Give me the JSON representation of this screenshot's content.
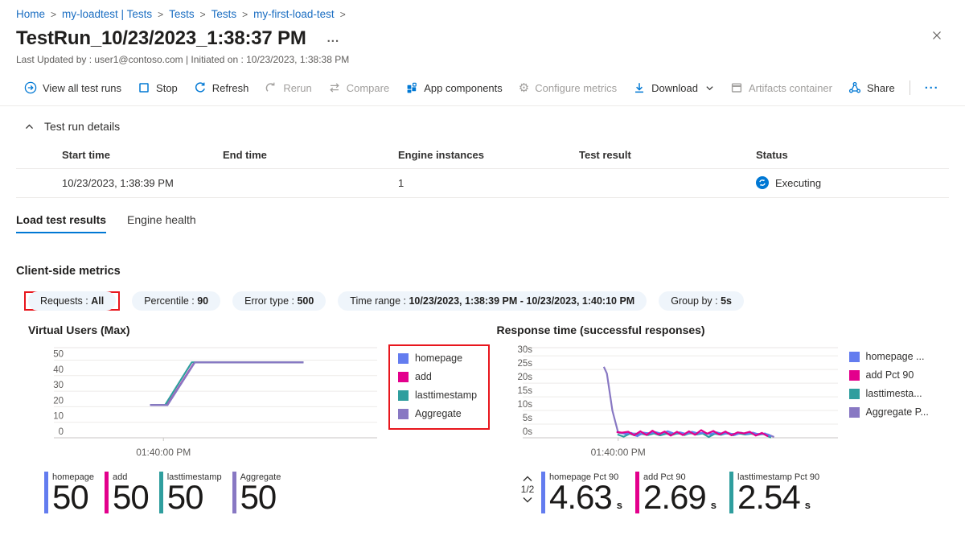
{
  "breadcrumb": {
    "separator": ">",
    "items": [
      "Home",
      "my-loadtest | Tests",
      "Tests",
      "Tests",
      "my-first-load-test"
    ]
  },
  "header": {
    "title": "TestRun_10/23/2023_1:38:37 PM",
    "more_label": "...",
    "subtitle": "Last Updated by : user1@contoso.com | Initiated on : 10/23/2023, 1:38:38 PM"
  },
  "toolbar": {
    "items": [
      {
        "id": "view-all-test-runs",
        "label": "View all test runs",
        "icon": "goto",
        "enabled": true
      },
      {
        "id": "stop",
        "label": "Stop",
        "icon": "stop",
        "enabled": true
      },
      {
        "id": "refresh",
        "label": "Refresh",
        "icon": "refresh",
        "enabled": true
      },
      {
        "id": "rerun",
        "label": "Rerun",
        "icon": "rerun",
        "enabled": false
      },
      {
        "id": "compare",
        "label": "Compare",
        "icon": "compare",
        "enabled": false
      },
      {
        "id": "app-components",
        "label": "App components",
        "icon": "appcomponents",
        "enabled": true
      },
      {
        "id": "configure-metrics",
        "label": "Configure metrics",
        "icon": "gear",
        "enabled": false
      },
      {
        "id": "download",
        "label": "Download",
        "icon": "download",
        "enabled": true,
        "dropdown": true
      },
      {
        "id": "artifacts-container",
        "label": "Artifacts container",
        "icon": "container",
        "enabled": false
      },
      {
        "id": "share",
        "label": "Share",
        "icon": "share",
        "enabled": true
      },
      {
        "id": "more-commands",
        "label": "···",
        "icon": "ellipsis",
        "enabled": true,
        "divider_before": true
      }
    ]
  },
  "details": {
    "section_title": "Test run details",
    "table": {
      "headers": [
        "Start time",
        "End time",
        "Engine instances",
        "Test result",
        "Status"
      ],
      "row": [
        "10/23/2023, 1:38:39 PM",
        "",
        "1",
        ""
      ],
      "status_label": "Executing",
      "status_color": "#0078d4"
    }
  },
  "tabs": [
    {
      "label": "Load test results",
      "active": true
    },
    {
      "label": "Engine health",
      "active": false
    }
  ],
  "metrics": {
    "heading": "Client-side metrics",
    "filters": [
      {
        "label": "Requests",
        "value": "All",
        "highlighted": true
      },
      {
        "label": "Percentile",
        "value": "90",
        "highlighted": false
      },
      {
        "label": "Error type",
        "value": "500",
        "highlighted": false
      },
      {
        "label": "Time range",
        "value": "10/23/2023, 1:38:39 PM - 10/23/2023, 1:40:10 PM",
        "highlighted": false
      },
      {
        "label": "Group by",
        "value": "5s",
        "highlighted": false
      }
    ]
  },
  "colors": {
    "accent": "#0078d4",
    "annotation_red": "#e8161d",
    "homepage": "#637cef",
    "add": "#e3008c",
    "lasttimestamp": "#2f9e9e",
    "aggregate": "#8878c3"
  },
  "chart_data": [
    {
      "type": "line",
      "title": "Virtual Users (Max)",
      "ylim": [
        0,
        58
      ],
      "grid": true,
      "legend_position": "right",
      "legend_boxed": true,
      "y_ticks": [
        {
          "v": 0,
          "label": "0"
        },
        {
          "v": 10,
          "label": "10"
        },
        {
          "v": 20,
          "label": "20"
        },
        {
          "v": 30,
          "label": "30"
        },
        {
          "v": 40,
          "label": "40"
        },
        {
          "v": 50,
          "label": "50"
        }
      ],
      "x_ticks": [
        {
          "f": 0.315,
          "label": "01:40:00 PM"
        }
      ],
      "legend": [
        {
          "label": "homepage",
          "color": "#637cef"
        },
        {
          "label": "add",
          "color": "#e3008c"
        },
        {
          "label": "lasttimestamp",
          "color": "#2f9e9e"
        },
        {
          "label": "Aggregate",
          "color": "#8878c3"
        }
      ],
      "series": [
        {
          "name": "homepage",
          "color": "#637cef",
          "points": [
            [
              0.272,
              21
            ],
            [
              0.327,
              21
            ],
            [
              0.415,
              48.6
            ],
            [
              0.764,
              48.6
            ]
          ]
        },
        {
          "name": "add",
          "color": "#e3008c",
          "points": [
            [
              0.272,
              21
            ],
            [
              0.327,
              21
            ],
            [
              0.415,
              48.6
            ],
            [
              0.764,
              48.6
            ]
          ]
        },
        {
          "name": "lasttimestamp",
          "color": "#2f9e9e",
          "points": [
            [
              0.272,
              21
            ],
            [
              0.32,
              21
            ],
            [
              0.406,
              48.6
            ],
            [
              0.764,
              48.6
            ]
          ]
        },
        {
          "name": "Aggregate",
          "color": "#8878c3",
          "points": [
            [
              0.272,
              21
            ],
            [
              0.328,
              21
            ],
            [
              0.416,
              48.6
            ],
            [
              0.764,
              48.6
            ]
          ]
        }
      ]
    },
    {
      "type": "line",
      "title": "Response time (successful responses)",
      "ylim": [
        0,
        33
      ],
      "grid": true,
      "legend_position": "right",
      "legend_boxed": false,
      "y_ticks": [
        {
          "v": 0,
          "label": "0s"
        },
        {
          "v": 5,
          "label": "5s"
        },
        {
          "v": 10,
          "label": "10s"
        },
        {
          "v": 15,
          "label": "15s"
        },
        {
          "v": 20,
          "label": "20s"
        },
        {
          "v": 25,
          "label": "25s"
        },
        {
          "v": 30,
          "label": "30s"
        }
      ],
      "x_ticks": [
        {
          "f": 0.277,
          "label": "01:40:00 PM"
        }
      ],
      "legend": [
        {
          "label": "homepage ...",
          "color": "#637cef"
        },
        {
          "label": "add Pct 90",
          "color": "#e3008c"
        },
        {
          "label": "lasttimesta...",
          "color": "#2f9e9e"
        },
        {
          "label": "Aggregate P...",
          "color": "#8878c3"
        }
      ],
      "series": [
        {
          "name": "Aggregate Pct 90",
          "color": "#8878c3",
          "points": [
            [
              0.23,
              26
            ],
            [
              0.24,
              23.5
            ],
            [
              0.258,
              10
            ],
            [
              0.277,
              1.9
            ],
            [
              0.3,
              1.6
            ],
            [
              0.34,
              1.5
            ],
            [
              0.38,
              1.7
            ],
            [
              0.42,
              1.5
            ],
            [
              0.46,
              1.6
            ],
            [
              0.5,
              1.5
            ],
            [
              0.54,
              1.7
            ],
            [
              0.58,
              1.4
            ],
            [
              0.62,
              1.6
            ],
            [
              0.66,
              1.4
            ],
            [
              0.7,
              1.6
            ],
            [
              0.74,
              1.4
            ],
            [
              0.77,
              1.2
            ],
            [
              0.79,
              0.3
            ]
          ]
        },
        {
          "name": "lasttimestamp Pct 90",
          "color": "#2f9e9e",
          "points": [
            [
              0.275,
              1.2
            ],
            [
              0.295,
              0.4
            ],
            [
              0.315,
              1.5
            ],
            [
              0.335,
              0.8
            ],
            [
              0.355,
              1.4
            ],
            [
              0.375,
              1.0
            ],
            [
              0.395,
              1.6
            ],
            [
              0.415,
              0.9
            ],
            [
              0.435,
              1.5
            ],
            [
              0.455,
              1.1
            ],
            [
              0.475,
              1.7
            ],
            [
              0.495,
              1.0
            ],
            [
              0.515,
              1.8
            ],
            [
              0.535,
              1.2
            ],
            [
              0.555,
              1.6
            ],
            [
              0.575,
              0.3
            ],
            [
              0.595,
              1.5
            ],
            [
              0.615,
              1.1
            ],
            [
              0.635,
              1.7
            ],
            [
              0.655,
              0.9
            ],
            [
              0.675,
              1.6
            ],
            [
              0.695,
              1.2
            ],
            [
              0.715,
              1.5
            ],
            [
              0.735,
              1.0
            ],
            [
              0.755,
              1.4
            ],
            [
              0.78,
              0.1
            ]
          ]
        },
        {
          "name": "homepage Pct 90",
          "color": "#637cef",
          "points": [
            [
              0.272,
              2.3
            ],
            [
              0.3,
              1.4
            ],
            [
              0.32,
              1.8
            ],
            [
              0.34,
              0.6
            ],
            [
              0.36,
              1.9
            ],
            [
              0.38,
              1.6
            ],
            [
              0.4,
              2.1
            ],
            [
              0.42,
              1.5
            ],
            [
              0.44,
              2.4
            ],
            [
              0.46,
              1.6
            ],
            [
              0.48,
              2.0
            ],
            [
              0.5,
              1.4
            ],
            [
              0.52,
              2.2
            ],
            [
              0.54,
              1.6
            ],
            [
              0.56,
              1.9
            ],
            [
              0.58,
              1.3
            ],
            [
              0.6,
              2.0
            ],
            [
              0.62,
              1.5
            ],
            [
              0.64,
              1.8
            ],
            [
              0.66,
              1.0
            ],
            [
              0.68,
              1.9
            ],
            [
              0.7,
              1.4
            ],
            [
              0.72,
              1.9
            ],
            [
              0.74,
              1.2
            ],
            [
              0.76,
              1.6
            ],
            [
              0.78,
              0.6
            ]
          ]
        },
        {
          "name": "add Pct 90",
          "color": "#e3008c",
          "points": [
            [
              0.272,
              2.1
            ],
            [
              0.29,
              1.9
            ],
            [
              0.31,
              2.2
            ],
            [
              0.33,
              0.9
            ],
            [
              0.35,
              2.4
            ],
            [
              0.37,
              1.0
            ],
            [
              0.39,
              2.6
            ],
            [
              0.41,
              1.2
            ],
            [
              0.43,
              2.3
            ],
            [
              0.45,
              0.8
            ],
            [
              0.47,
              2.2
            ],
            [
              0.49,
              1.0
            ],
            [
              0.51,
              2.4
            ],
            [
              0.53,
              1.1
            ],
            [
              0.55,
              2.8
            ],
            [
              0.57,
              1.5
            ],
            [
              0.59,
              2.5
            ],
            [
              0.61,
              1.2
            ],
            [
              0.63,
              2.3
            ],
            [
              0.65,
              0.9
            ],
            [
              0.67,
              2.0
            ],
            [
              0.69,
              1.6
            ],
            [
              0.71,
              2.2
            ],
            [
              0.73,
              0.8
            ],
            [
              0.75,
              1.8
            ],
            [
              0.77,
              0.5
            ]
          ]
        }
      ]
    }
  ],
  "summary": {
    "pagination": "1/2",
    "left": [
      {
        "label": "homepage",
        "value": "50",
        "unit": "",
        "color": "#637cef"
      },
      {
        "label": "add",
        "value": "50",
        "unit": "",
        "color": "#e3008c"
      },
      {
        "label": "lasttimestamp",
        "value": "50",
        "unit": "",
        "color": "#2f9e9e"
      },
      {
        "label": "Aggregate",
        "value": "50",
        "unit": "",
        "color": "#8878c3"
      }
    ],
    "right": [
      {
        "label": "homepage Pct 90",
        "value": "4.63",
        "unit": "s",
        "color": "#637cef"
      },
      {
        "label": "add Pct 90",
        "value": "2.69",
        "unit": "s",
        "color": "#e3008c"
      },
      {
        "label": "lasttimestamp Pct 90",
        "value": "2.54",
        "unit": "s",
        "color": "#2f9e9e"
      }
    ]
  },
  "icons": {
    "breadcrumb_separator": ">",
    "gear_glyph": "⚙",
    "ellipsis_glyph": "···"
  }
}
